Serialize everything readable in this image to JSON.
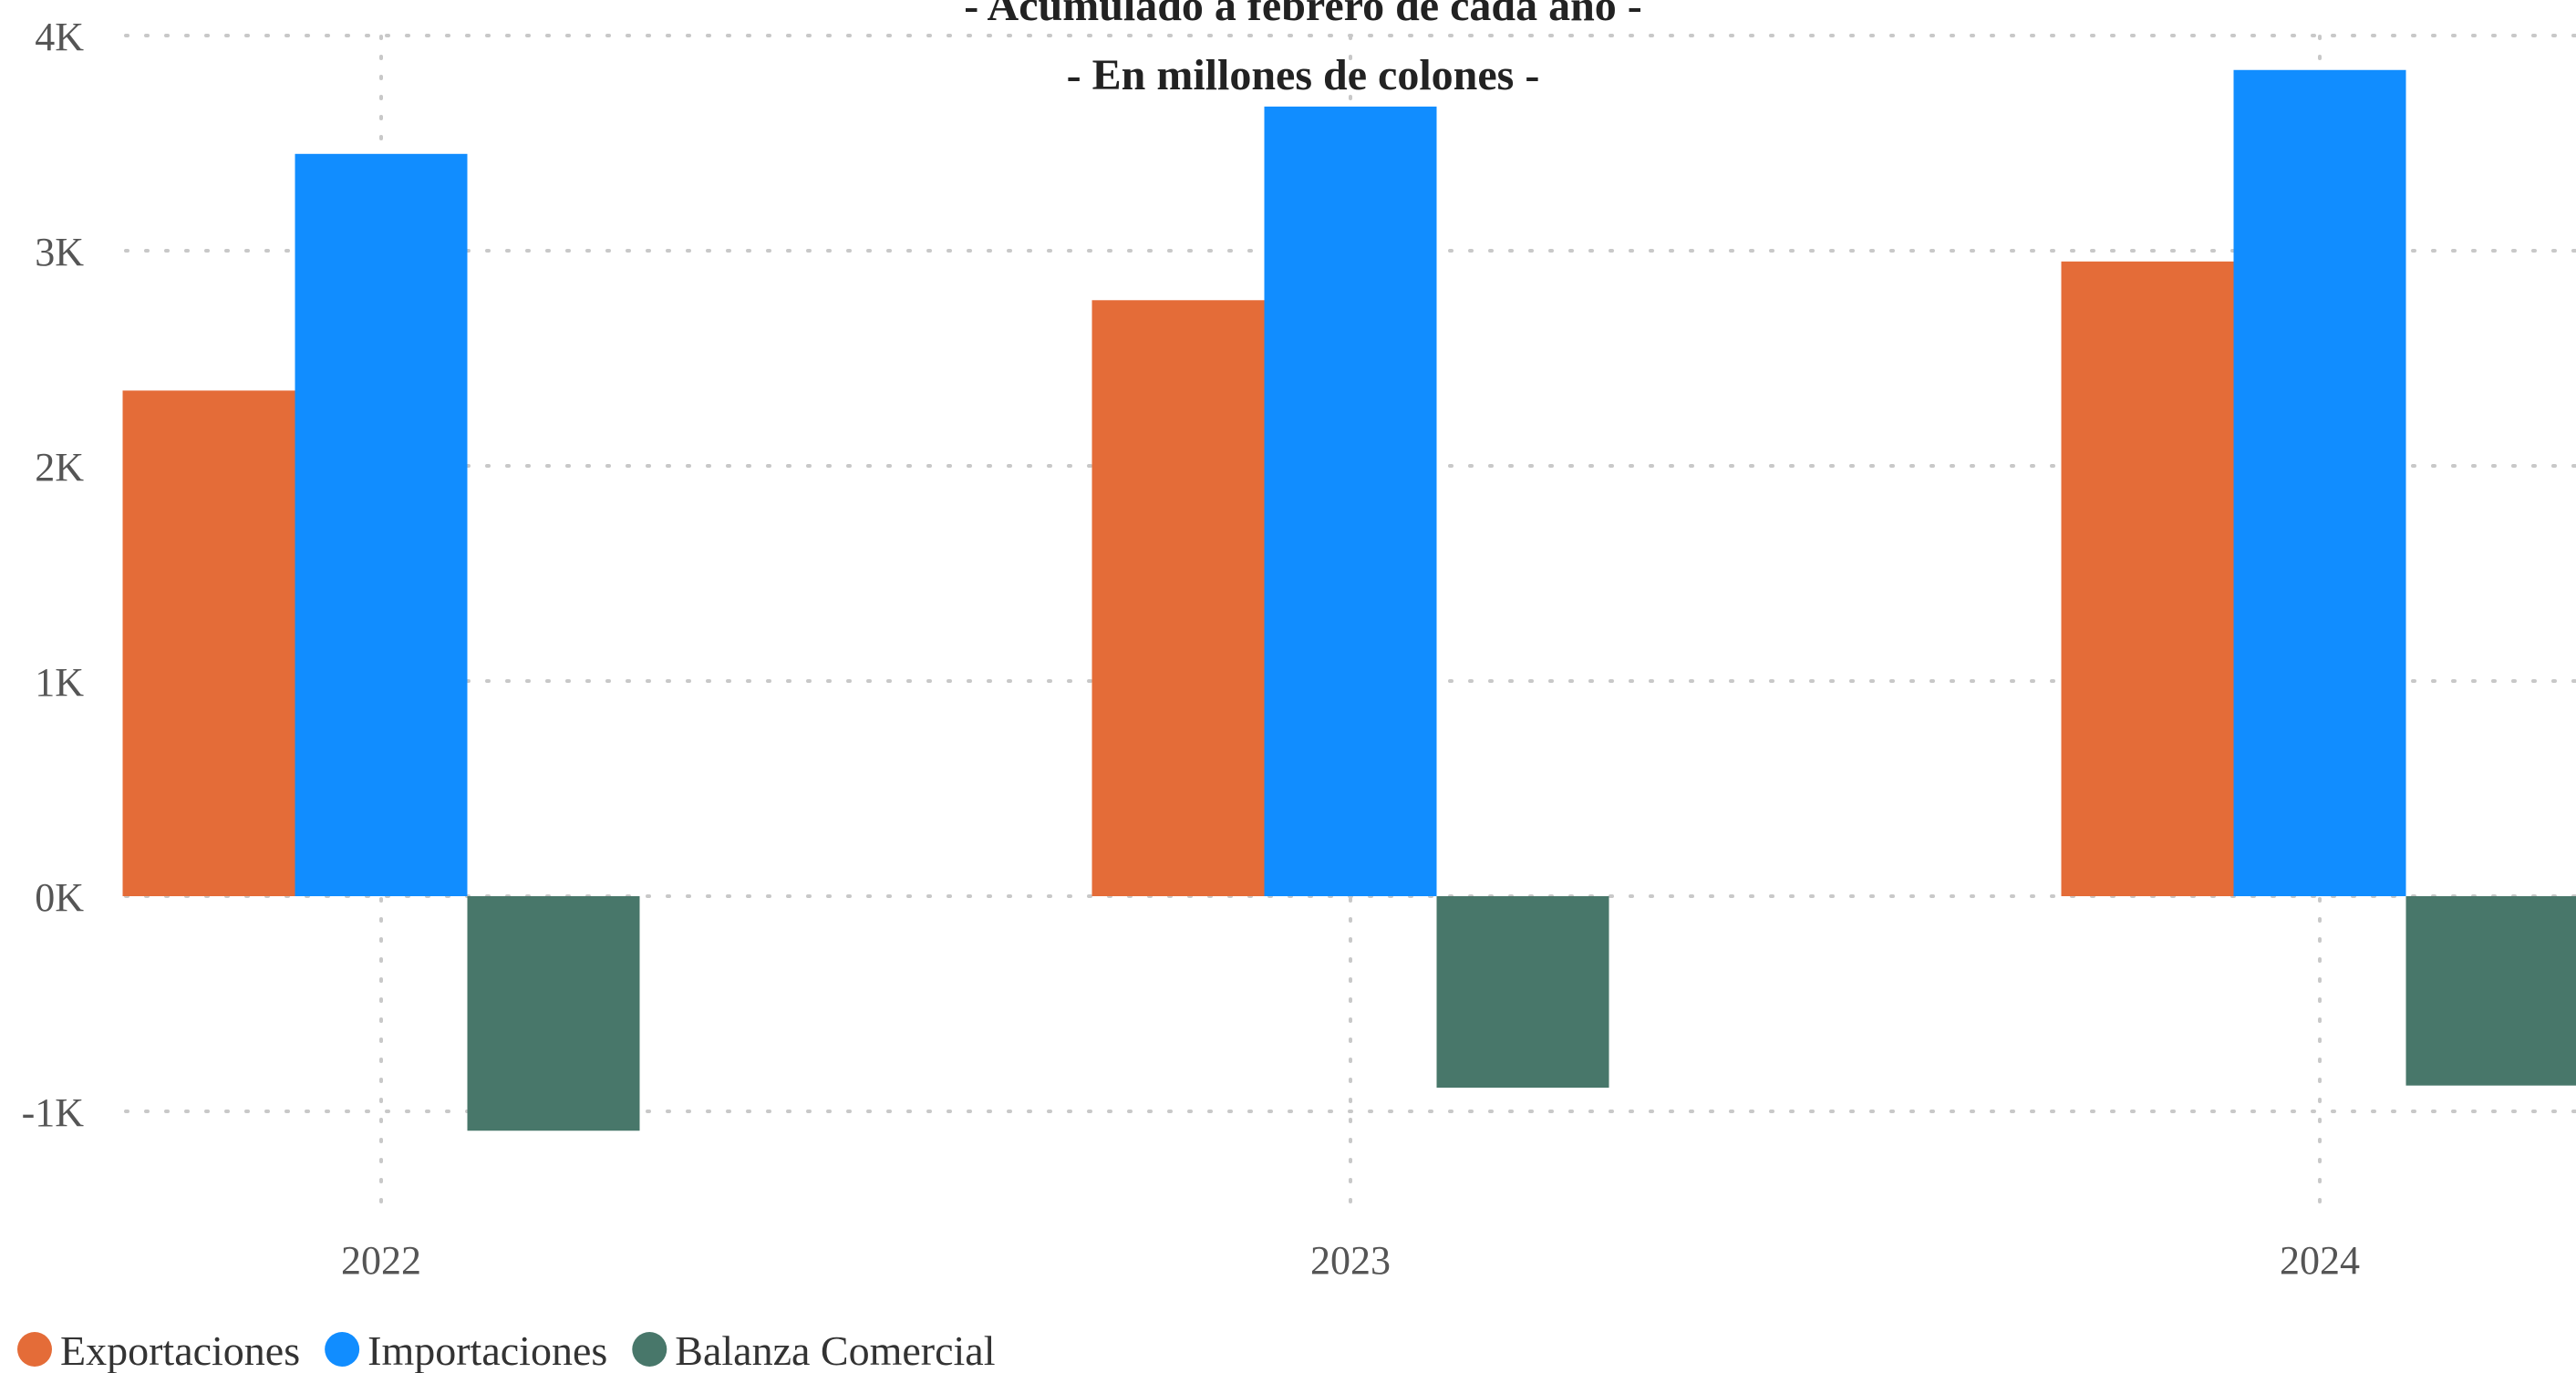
{
  "chart_data": {
    "type": "bar",
    "title": "- Acumulado a febrero de cada año -",
    "subtitle": "- En millones de colones -",
    "xlabel": "",
    "ylabel": "",
    "categories": [
      "2022",
      "2023",
      "2024"
    ],
    "series": [
      {
        "name": "Exportaciones",
        "color": "#E46C38",
        "values": [
          2350,
          2770,
          2950
        ]
      },
      {
        "name": "Importaciones",
        "color": "#118DFF",
        "values": [
          3450,
          3670,
          3840
        ]
      },
      {
        "name": "Balanza Comercial",
        "color": "#48776A",
        "values": [
          -1090,
          -890,
          -880
        ]
      }
    ],
    "ylim": [
      -1000,
      4000
    ],
    "yticks": [
      -1000,
      0,
      1000,
      2000,
      3000,
      4000
    ],
    "ytick_labels": [
      "-1K",
      "0K",
      "1K",
      "2K",
      "3K",
      "4K"
    ],
    "grid": true,
    "legend_position": "bottom-left"
  }
}
